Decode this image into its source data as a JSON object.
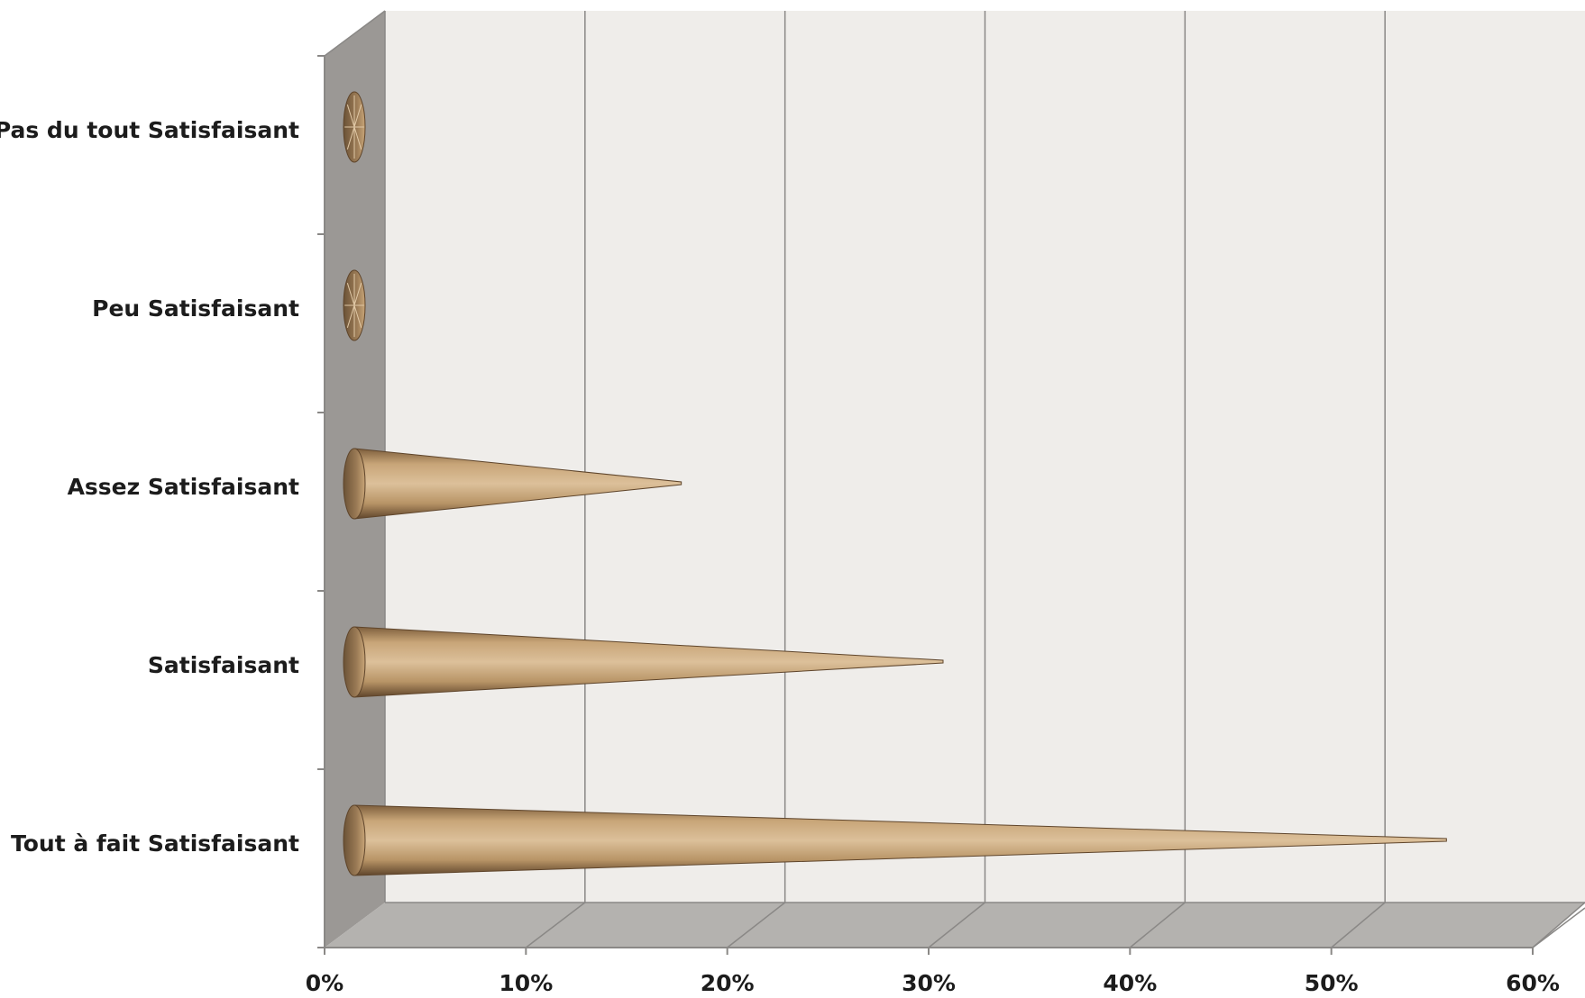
{
  "chart_data": {
    "type": "bar",
    "style": "3d-cone-horizontal",
    "categories": [
      "Pas du tout Satisfaisant",
      "Peu Satisfaisant",
      "Assez Satisfaisant",
      "Satisfaisant",
      "Tout à fait Satisfaisant"
    ],
    "series": [
      {
        "values": [
          0,
          0,
          17,
          30,
          55
        ]
      }
    ],
    "xlim": [
      0,
      60
    ],
    "x_ticks": [
      "0%",
      "10%",
      "20%",
      "30%",
      "40%",
      "50%",
      "60%"
    ],
    "title": "",
    "xlabel": "",
    "ylabel": "",
    "grid": true,
    "legend": "none",
    "colors": {
      "cone": "#c8a578",
      "cone_dark": "#7d5e3c",
      "wall": "#efedea",
      "side_wall": "#9b9895",
      "floor": "#b4b2af",
      "gridline": "#8a8886"
    }
  }
}
